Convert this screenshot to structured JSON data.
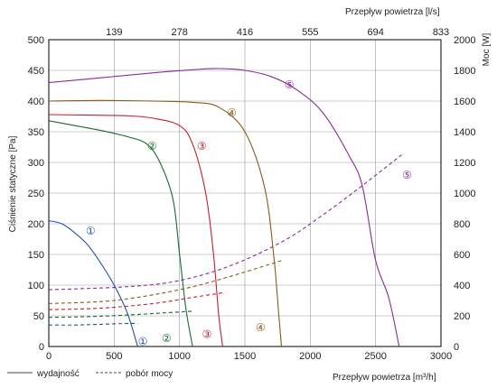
{
  "chart_data": {
    "type": "line",
    "xlabel_bottom": "Przepływ powietrza [m³/h]",
    "xlabel_top": "Przepływ powietrza [l/s]",
    "ylabel_left": "Ciśnienie statyczne [Pa]",
    "ylabel_right": "Moc [W]",
    "xlim": [
      0,
      3000
    ],
    "ylim": [
      0,
      500
    ],
    "ylim_right": [
      0,
      2000
    ],
    "x_ticks": [
      "0",
      "500",
      "1000",
      "1500",
      "2000",
      "2500",
      "3000"
    ],
    "x_top_ticks": [
      "139",
      "278",
      "416",
      "555",
      "694",
      "833"
    ],
    "y_ticks": [
      "0",
      "50",
      "100",
      "150",
      "200",
      "250",
      "300",
      "350",
      "400",
      "450",
      "500"
    ],
    "y_right_ticks": [
      "0",
      "200",
      "400",
      "600",
      "800",
      "1000",
      "1200",
      "1400",
      "1600",
      "1800",
      "2000"
    ],
    "grid": true,
    "legend": {
      "solid": "wydajność",
      "dashed": "pobór mocy",
      "placement": "bottom-left"
    },
    "series": [
      {
        "marker": "①",
        "color": "#1f4fa6",
        "pressure": [
          [
            0,
            205
          ],
          [
            100,
            200
          ],
          [
            200,
            185
          ],
          [
            300,
            165
          ],
          [
            400,
            135
          ],
          [
            500,
            100
          ],
          [
            600,
            55
          ],
          [
            680,
            0
          ]
        ],
        "power": [
          [
            0,
            140
          ],
          [
            200,
            140
          ],
          [
            400,
            145
          ],
          [
            600,
            150
          ],
          [
            680,
            150
          ]
        ],
        "marker_pressure_at": [
          320,
          190
        ],
        "marker_power_at": [
          720,
          38
        ]
      },
      {
        "marker": "②",
        "color": "#1a6a2a",
        "pressure": [
          [
            0,
            368
          ],
          [
            200,
            360
          ],
          [
            400,
            352
          ],
          [
            600,
            342
          ],
          [
            750,
            330
          ],
          [
            850,
            300
          ],
          [
            950,
            240
          ],
          [
            1000,
            150
          ],
          [
            1050,
            60
          ],
          [
            1100,
            0
          ]
        ],
        "power": [
          [
            0,
            190
          ],
          [
            300,
            195
          ],
          [
            600,
            205
          ],
          [
            900,
            220
          ],
          [
            1100,
            230
          ]
        ],
        "marker_pressure_at": [
          790,
          328
        ],
        "marker_power_at": [
          900,
          58
        ]
      },
      {
        "marker": "③",
        "color": "#c21f2a",
        "pressure": [
          [
            0,
            378
          ],
          [
            300,
            377
          ],
          [
            600,
            376
          ],
          [
            800,
            372
          ],
          [
            1000,
            360
          ],
          [
            1100,
            330
          ],
          [
            1200,
            250
          ],
          [
            1260,
            150
          ],
          [
            1300,
            50
          ],
          [
            1330,
            0
          ]
        ],
        "power": [
          [
            0,
            240
          ],
          [
            400,
            250
          ],
          [
            800,
            280
          ],
          [
            1100,
            320
          ],
          [
            1330,
            350
          ]
        ],
        "marker_pressure_at": [
          1170,
          328
        ],
        "marker_power_at": [
          1210,
          85
        ]
      },
      {
        "marker": "④",
        "color": "#8a5a1a",
        "pressure": [
          [
            0,
            400
          ],
          [
            400,
            401
          ],
          [
            800,
            400
          ],
          [
            1100,
            398
          ],
          [
            1300,
            390
          ],
          [
            1500,
            350
          ],
          [
            1650,
            260
          ],
          [
            1720,
            150
          ],
          [
            1760,
            50
          ],
          [
            1780,
            0
          ]
        ],
        "power": [
          [
            0,
            280
          ],
          [
            500,
            300
          ],
          [
            1000,
            370
          ],
          [
            1400,
            460
          ],
          [
            1780,
            560
          ]
        ],
        "marker_pressure_at": [
          1400,
          382
        ],
        "marker_power_at": [
          1620,
          128
        ]
      },
      {
        "marker": "⑤",
        "color": "#8a2a9a",
        "pressure": [
          [
            0,
            430
          ],
          [
            400,
            438
          ],
          [
            800,
            446
          ],
          [
            1100,
            451
          ],
          [
            1300,
            453
          ],
          [
            1500,
            450
          ],
          [
            1700,
            440
          ],
          [
            1900,
            418
          ],
          [
            2100,
            380
          ],
          [
            2300,
            310
          ],
          [
            2400,
            260
          ],
          [
            2500,
            140
          ],
          [
            2600,
            80
          ],
          [
            2680,
            0
          ]
        ],
        "power": [
          [
            0,
            370
          ],
          [
            600,
            390
          ],
          [
            1000,
            430
          ],
          [
            1400,
            530
          ],
          [
            1800,
            690
          ],
          [
            2100,
            860
          ],
          [
            2400,
            1050
          ],
          [
            2700,
            1250
          ]
        ],
        "marker_pressure_at": [
          1840,
          428
        ],
        "marker_power_at": [
          2740,
          1125
        ]
      }
    ]
  }
}
